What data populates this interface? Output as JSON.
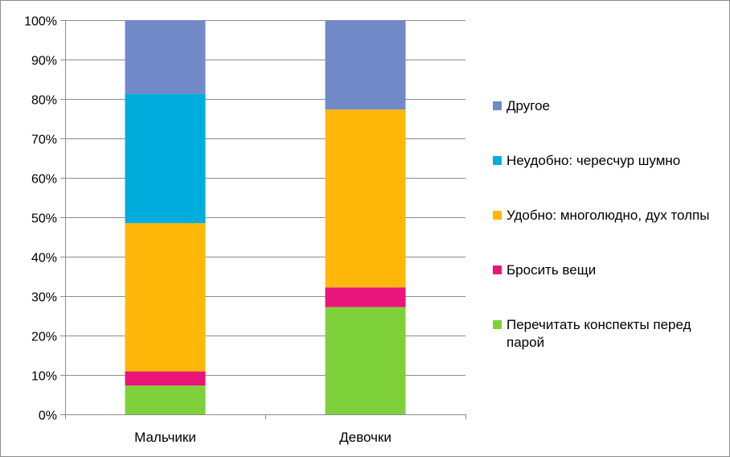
{
  "chart_data": {
    "type": "bar",
    "stacked": true,
    "percent": true,
    "categories": [
      "Мальчики",
      "Девочки"
    ],
    "series": [
      {
        "name": "Перечитать конспекты перед парой",
        "color": "#7fd13b",
        "values": [
          7.3,
          27.2
        ]
      },
      {
        "name": "Бросить вещи",
        "color": "#ea157a",
        "values": [
          3.6,
          5.0
        ]
      },
      {
        "name": "Удобно: многолюдно, дух толпы",
        "color": "#feb80a",
        "values": [
          37.6,
          45.1
        ]
      },
      {
        "name": "Неудобно: чересчур шумно",
        "color": "#00addc",
        "values": [
          32.8,
          0
        ]
      },
      {
        "name": "Другое",
        "color": "#738ac8",
        "values": [
          18.7,
          22.7
        ]
      }
    ],
    "ylim": [
      0,
      100
    ],
    "yticks": [
      "0%",
      "10%",
      "20%",
      "30%",
      "40%",
      "50%",
      "60%",
      "70%",
      "80%",
      "90%",
      "100%"
    ],
    "grid": true,
    "legend_position": "right"
  },
  "legend_order": [
    4,
    3,
    2,
    1,
    0
  ]
}
